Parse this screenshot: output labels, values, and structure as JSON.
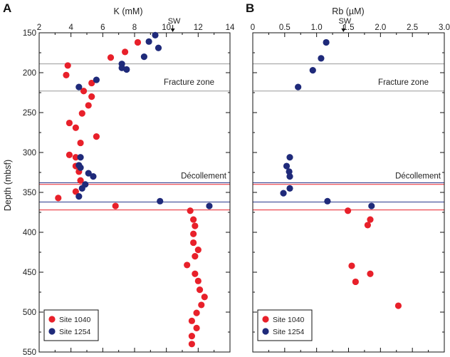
{
  "chart_data": [
    {
      "panel": "A",
      "type": "scatter",
      "xlabel": "K (mM)",
      "ylabel": "Depth (mbsf)",
      "xlim": [
        2,
        14
      ],
      "ylim": [
        150,
        550
      ],
      "y_reversed": true,
      "xticks": [
        2,
        4,
        6,
        8,
        10,
        12,
        14
      ],
      "xtick_labels": [
        "2",
        "4",
        "6",
        "8",
        "10",
        "12",
        "14"
      ],
      "yticks": [
        150,
        200,
        250,
        300,
        350,
        400,
        450,
        500,
        550
      ],
      "ytick_labels": [
        "150",
        "200",
        "250",
        "300",
        "350",
        "400",
        "450",
        "500",
        "550"
      ],
      "seawater": {
        "label": "SW",
        "x": 10.4
      },
      "zones": [
        {
          "label": "Fracture zone",
          "top": 189,
          "bottom": 223,
          "color": "#999999"
        },
        {
          "label": "Décollement",
          "lines": [
            {
              "depth": 338,
              "color": "#2b3a8c"
            },
            {
              "depth": 340,
              "color": "#e8202a"
            },
            {
              "depth": 362,
              "color": "#2b3a8c"
            },
            {
              "depth": 372,
              "color": "#e8202a"
            }
          ]
        }
      ],
      "legend_position": "bottom-left",
      "series": [
        {
          "name": "Site 1040",
          "color": "#e8202a",
          "points": [
            [
              8.2,
              162
            ],
            [
              7.4,
              174
            ],
            [
              6.5,
              181
            ],
            [
              3.8,
              191
            ],
            [
              3.7,
              203
            ],
            [
              5.3,
              213
            ],
            [
              4.8,
              223
            ],
            [
              5.3,
              230
            ],
            [
              5.1,
              241
            ],
            [
              4.7,
              251
            ],
            [
              3.9,
              263
            ],
            [
              4.3,
              269
            ],
            [
              5.6,
              280
            ],
            [
              4.6,
              288
            ],
            [
              3.9,
              303
            ],
            [
              4.3,
              306
            ],
            [
              4.3,
              317
            ],
            [
              4.5,
              324
            ],
            [
              4.6,
              335
            ],
            [
              4.3,
              349
            ],
            [
              3.2,
              357
            ],
            [
              6.8,
              367
            ],
            [
              11.5,
              373
            ],
            [
              11.7,
              384
            ],
            [
              11.8,
              392
            ],
            [
              11.7,
              402
            ],
            [
              11.7,
              413
            ],
            [
              12.0,
              422
            ],
            [
              11.8,
              430
            ],
            [
              11.3,
              441
            ],
            [
              11.8,
              452
            ],
            [
              12.0,
              461
            ],
            [
              12.1,
              472
            ],
            [
              12.4,
              481
            ],
            [
              12.2,
              491
            ],
            [
              11.9,
              501
            ],
            [
              11.6,
              511
            ],
            [
              11.9,
              520
            ],
            [
              11.6,
              530
            ],
            [
              11.6,
              540
            ]
          ]
        },
        {
          "name": "Site 1254",
          "color": "#1f2a7a",
          "points": [
            [
              9.3,
              153
            ],
            [
              8.9,
              161
            ],
            [
              9.5,
              169
            ],
            [
              7.2,
              189
            ],
            [
              7.2,
              194
            ],
            [
              7.5,
              196
            ],
            [
              8.6,
              180
            ],
            [
              5.6,
              209
            ],
            [
              4.5,
              218
            ],
            [
              4.6,
              306
            ],
            [
              4.5,
              316
            ],
            [
              4.6,
              319
            ],
            [
              5.1,
              326
            ],
            [
              5.4,
              330
            ],
            [
              4.9,
              340
            ],
            [
              4.7,
              345
            ],
            [
              4.5,
              355
            ],
            [
              9.6,
              361
            ],
            [
              12.7,
              367
            ]
          ]
        }
      ]
    },
    {
      "panel": "B",
      "type": "scatter",
      "xlabel": "Rb (µM)",
      "ylabel": "",
      "xlim": [
        0,
        3.0
      ],
      "ylim": [
        150,
        550
      ],
      "y_reversed": true,
      "xticks": [
        0,
        0.5,
        1.0,
        1.5,
        2.0,
        2.5,
        3.0
      ],
      "xtick_labels": [
        "0",
        "0.5",
        "1.0",
        "1.5",
        "2.0",
        "2.5",
        "3.0"
      ],
      "yticks": [
        150,
        200,
        250,
        300,
        350,
        400,
        450,
        500,
        550
      ],
      "ytick_labels": [
        "",
        "",
        "",
        "",
        "",
        "",
        "",
        "",
        ""
      ],
      "seawater": {
        "label": "SW",
        "x": 1.42
      },
      "zones": [
        {
          "label": "Fracture zone",
          "top": 189,
          "bottom": 223,
          "color": "#999999"
        },
        {
          "label": "Décollement",
          "lines": [
            {
              "depth": 338,
              "color": "#2b3a8c"
            },
            {
              "depth": 340,
              "color": "#e8202a"
            },
            {
              "depth": 362,
              "color": "#2b3a8c"
            },
            {
              "depth": 372,
              "color": "#e8202a"
            }
          ]
        }
      ],
      "legend_position": "bottom-left",
      "series": [
        {
          "name": "Site 1040",
          "color": "#e8202a",
          "points": [
            [
              1.49,
              373
            ],
            [
              1.84,
              384
            ],
            [
              1.8,
              391
            ],
            [
              1.55,
              442
            ],
            [
              1.84,
              452
            ],
            [
              1.61,
              462
            ],
            [
              2.28,
              492
            ]
          ]
        },
        {
          "name": "Site 1254",
          "color": "#1f2a7a",
          "points": [
            [
              1.15,
              162
            ],
            [
              1.07,
              182
            ],
            [
              0.94,
              197
            ],
            [
              0.71,
              218
            ],
            [
              0.58,
              306
            ],
            [
              0.53,
              317
            ],
            [
              0.57,
              324
            ],
            [
              0.58,
              330
            ],
            [
              0.58,
              345
            ],
            [
              0.48,
              351
            ],
            [
              1.17,
              361
            ],
            [
              1.86,
              367
            ]
          ]
        }
      ]
    }
  ]
}
